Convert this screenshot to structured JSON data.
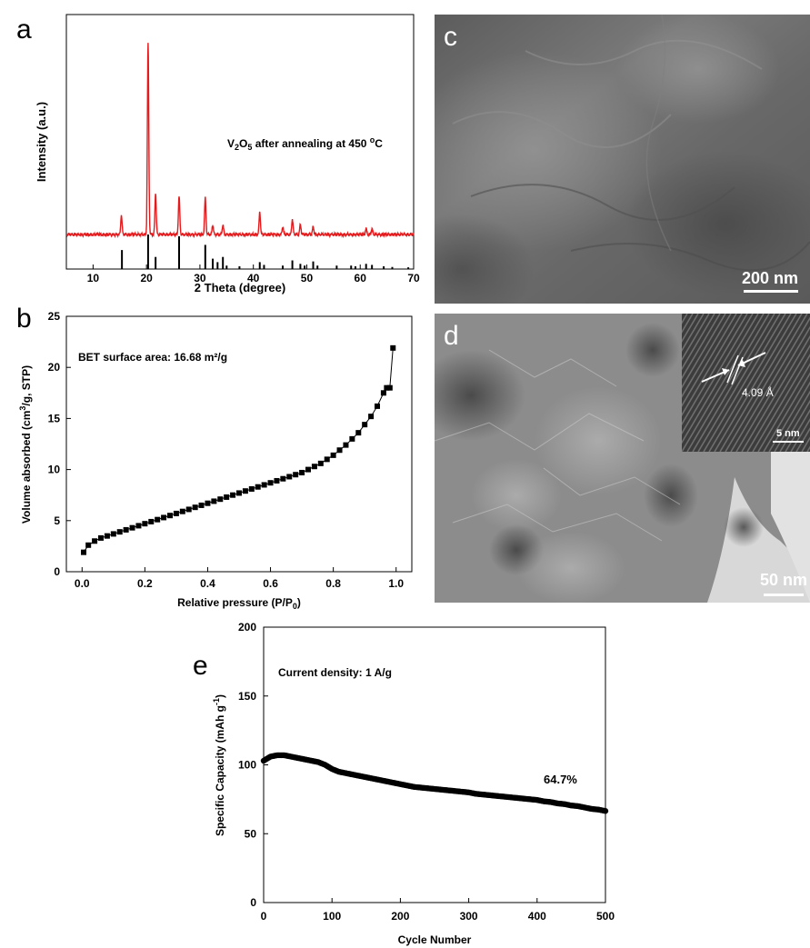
{
  "panels": {
    "a": "a",
    "b": "b",
    "c": "c",
    "d": "d",
    "e": "e"
  },
  "colors": {
    "xrd_line": "#e41a1c",
    "reference_bars": "#000000",
    "sem_background": "#6b6b6b",
    "tem_background": "#8a8a8a"
  },
  "sem": {
    "scale_label": "200 nm"
  },
  "tem": {
    "scale_label": "50 nm",
    "inset_scale_label": "5 nm",
    "lattice_label": "4.09 Å"
  },
  "chart_data": [
    {
      "id": "a",
      "type": "line",
      "xlabel": "2 Theta (degree)",
      "ylabel": "Intensity (a.u.)",
      "annotation": "V2O5 after annealing at 450 oC",
      "xlim": [
        5,
        70
      ],
      "x_ticks": [
        10,
        20,
        30,
        40,
        50,
        60,
        70
      ],
      "peaks": [
        {
          "x": 15.3,
          "y": 0.1
        },
        {
          "x": 20.3,
          "y": 1.0
        },
        {
          "x": 21.7,
          "y": 0.22
        },
        {
          "x": 26.1,
          "y": 0.2
        },
        {
          "x": 31.0,
          "y": 0.19
        },
        {
          "x": 32.4,
          "y": 0.05
        },
        {
          "x": 34.3,
          "y": 0.05
        },
        {
          "x": 41.2,
          "y": 0.12
        },
        {
          "x": 45.5,
          "y": 0.04
        },
        {
          "x": 47.3,
          "y": 0.08
        },
        {
          "x": 48.8,
          "y": 0.05
        },
        {
          "x": 51.2,
          "y": 0.04
        },
        {
          "x": 61.1,
          "y": 0.03
        },
        {
          "x": 62.2,
          "y": 0.03
        }
      ],
      "reference": [
        {
          "x": 15.4,
          "h": 0.55
        },
        {
          "x": 20.3,
          "h": 1.0
        },
        {
          "x": 21.7,
          "h": 0.35
        },
        {
          "x": 26.1,
          "h": 0.95
        },
        {
          "x": 31.0,
          "h": 0.7
        },
        {
          "x": 32.4,
          "h": 0.3
        },
        {
          "x": 33.3,
          "h": 0.2
        },
        {
          "x": 34.3,
          "h": 0.35
        },
        {
          "x": 35.0,
          "h": 0.1
        },
        {
          "x": 37.4,
          "h": 0.08
        },
        {
          "x": 41.2,
          "h": 0.2
        },
        {
          "x": 42.0,
          "h": 0.12
        },
        {
          "x": 45.5,
          "h": 0.1
        },
        {
          "x": 47.3,
          "h": 0.25
        },
        {
          "x": 48.8,
          "h": 0.15
        },
        {
          "x": 49.6,
          "h": 0.1
        },
        {
          "x": 51.2,
          "h": 0.22
        },
        {
          "x": 52.0,
          "h": 0.1
        },
        {
          "x": 55.6,
          "h": 0.1
        },
        {
          "x": 58.3,
          "h": 0.1
        },
        {
          "x": 59.1,
          "h": 0.08
        },
        {
          "x": 61.1,
          "h": 0.15
        },
        {
          "x": 62.2,
          "h": 0.12
        },
        {
          "x": 64.4,
          "h": 0.08
        },
        {
          "x": 66.0,
          "h": 0.06
        },
        {
          "x": 69.0,
          "h": 0.05
        }
      ]
    },
    {
      "id": "b",
      "type": "scatter",
      "xlabel": "Relative pressure (P/P0)",
      "ylabel": "Volume absorbed (cm3/g, STP)",
      "annotation": "BET surface area: 16.68 m²/g",
      "xlim": [
        -0.05,
        1.05
      ],
      "ylim": [
        0,
        25
      ],
      "x_ticks": [
        "0.0",
        "0.2",
        "0.4",
        "0.6",
        "0.8",
        "1.0"
      ],
      "y_ticks": [
        "0",
        "5",
        "10",
        "15",
        "20",
        "25"
      ],
      "x": [
        0.005,
        0.02,
        0.04,
        0.06,
        0.08,
        0.1,
        0.12,
        0.14,
        0.16,
        0.18,
        0.2,
        0.22,
        0.24,
        0.26,
        0.28,
        0.3,
        0.32,
        0.34,
        0.36,
        0.38,
        0.4,
        0.42,
        0.44,
        0.46,
        0.48,
        0.5,
        0.52,
        0.54,
        0.56,
        0.58,
        0.6,
        0.62,
        0.64,
        0.66,
        0.68,
        0.7,
        0.72,
        0.74,
        0.76,
        0.78,
        0.8,
        0.82,
        0.84,
        0.86,
        0.88,
        0.9,
        0.92,
        0.94,
        0.96,
        0.97,
        0.98,
        0.99
      ],
      "y": [
        1.9,
        2.6,
        3.0,
        3.3,
        3.5,
        3.7,
        3.9,
        4.1,
        4.3,
        4.5,
        4.7,
        4.9,
        5.1,
        5.3,
        5.5,
        5.7,
        5.9,
        6.1,
        6.3,
        6.5,
        6.7,
        6.9,
        7.1,
        7.3,
        7.5,
        7.7,
        7.9,
        8.1,
        8.3,
        8.5,
        8.7,
        8.9,
        9.1,
        9.3,
        9.5,
        9.7,
        10.0,
        10.3,
        10.6,
        11.0,
        11.4,
        11.9,
        12.4,
        13.0,
        13.6,
        14.4,
        15.2,
        16.2,
        17.5,
        18.0,
        18.0,
        21.9
      ]
    },
    {
      "id": "e",
      "type": "scatter",
      "xlabel": "Cycle Number",
      "ylabel": "Specific Capacity (mAh g-1)",
      "annotation": "Current density: 1 A/g",
      "retention_label": "64.7%",
      "xlim": [
        0,
        500
      ],
      "ylim": [
        0,
        200
      ],
      "x_ticks": [
        "0",
        "100",
        "200",
        "300",
        "400",
        "500"
      ],
      "y_ticks": [
        "0",
        "50",
        "100",
        "150",
        "200"
      ],
      "x": [
        0,
        10,
        20,
        30,
        40,
        50,
        60,
        70,
        80,
        90,
        100,
        110,
        120,
        130,
        140,
        150,
        160,
        170,
        180,
        190,
        200,
        210,
        220,
        230,
        240,
        250,
        260,
        270,
        280,
        290,
        300,
        310,
        320,
        330,
        340,
        350,
        360,
        370,
        380,
        390,
        400,
        410,
        420,
        430,
        440,
        450,
        460,
        470,
        480,
        490,
        500
      ],
      "y": [
        103,
        106,
        107,
        107,
        106,
        105,
        104,
        103,
        102,
        100,
        97,
        95,
        94,
        93,
        92,
        91,
        90,
        89,
        88,
        87,
        86,
        85,
        84,
        83.5,
        83,
        82.5,
        82,
        81.5,
        81,
        80.5,
        80,
        79,
        78.5,
        78,
        77.5,
        77,
        76.5,
        76,
        75.5,
        75,
        74.5,
        73.5,
        73,
        72,
        71.5,
        70.5,
        70,
        69,
        68,
        67.5,
        66.5
      ]
    }
  ]
}
